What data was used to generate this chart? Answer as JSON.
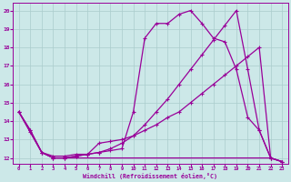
{
  "xlabel": "Windchill (Refroidissement éolien,°C)",
  "bg_color": "#cce8e8",
  "line_color": "#990099",
  "grid_color": "#aacccc",
  "x": [
    0,
    1,
    2,
    3,
    4,
    5,
    6,
    7,
    8,
    9,
    10,
    11,
    12,
    13,
    14,
    15,
    16,
    17,
    18,
    19,
    20,
    21,
    22,
    23
  ],
  "curve_high": [
    14.5,
    13.5,
    12.3,
    12.0,
    12.0,
    12.1,
    12.2,
    12.3,
    12.4,
    12.5,
    14.5,
    18.5,
    19.3,
    19.3,
    19.8,
    20.0,
    19.3,
    18.5,
    18.3,
    16.8,
    14.2,
    13.5,
    12.0,
    11.8
  ],
  "curve_gradual": [
    14.5,
    13.5,
    12.3,
    12.0,
    12.0,
    12.1,
    12.2,
    12.3,
    12.5,
    12.8,
    13.2,
    13.8,
    14.5,
    15.2,
    16.0,
    16.8,
    17.6,
    18.4,
    19.2,
    20.0,
    16.8,
    13.5,
    12.0,
    11.8
  ],
  "curve_flat": [
    14.5,
    13.4,
    12.3,
    12.0,
    12.0,
    12.0,
    12.0,
    12.0,
    12.0,
    12.0,
    12.0,
    12.0,
    12.0,
    12.0,
    12.0,
    12.0,
    12.0,
    12.0,
    12.0,
    12.0,
    12.0,
    12.0,
    12.0,
    11.8
  ],
  "curve_mid": [
    14.5,
    13.4,
    12.3,
    12.1,
    12.1,
    12.2,
    12.2,
    12.8,
    12.9,
    13.0,
    13.2,
    13.5,
    13.8,
    14.2,
    14.5,
    15.0,
    15.5,
    16.0,
    16.5,
    17.0,
    17.5,
    18.0,
    12.0,
    11.8
  ],
  "ylim_low": 11.7,
  "ylim_high": 20.4,
  "yticks": [
    12,
    13,
    14,
    15,
    16,
    17,
    18,
    19,
    20
  ],
  "figw": 3.2,
  "figh": 2.0,
  "dpi": 100
}
